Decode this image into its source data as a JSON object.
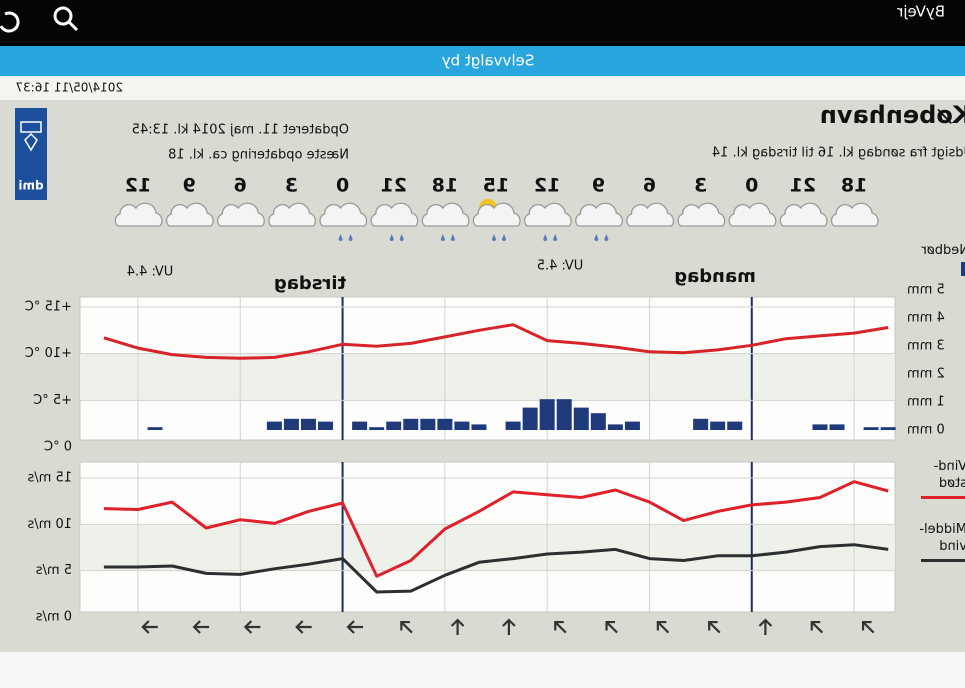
{
  "status_bar": {
    "app": "ByVejr"
  },
  "nav_bar": {
    "title": "Selvvalgt by"
  },
  "timestamp": "2014/05/11 16:37",
  "location": {
    "name": "København",
    "forecast_period": "Udsigt fra søndag kl. 16 til tirsdag kl. 14",
    "updated": "Opdateret 11. maj 2014 kl. 13:45",
    "next_update": "Næste opdatering ca. kl. 18"
  },
  "logo": "dmi",
  "days": [
    "mandag",
    "tirsdag"
  ],
  "uv": [
    "UV: 4.5",
    "UV: 4.4"
  ],
  "chart_data": [
    {
      "type": "line",
      "x": [
        -2,
        0,
        2,
        4,
        6,
        8,
        10,
        12,
        14,
        16,
        18,
        20,
        22,
        24,
        26,
        28,
        30,
        32,
        34,
        36,
        38,
        40,
        42,
        44
      ],
      "xlim": [
        -2.4,
        45.4
      ],
      "xticks": [
        {
          "value": 0,
          "label": "18"
        },
        {
          "value": 3,
          "label": "21"
        },
        {
          "value": 6,
          "label": "0"
        },
        {
          "value": 9,
          "label": "3"
        },
        {
          "value": 12,
          "label": "6"
        },
        {
          "value": 15,
          "label": "9"
        },
        {
          "value": 18,
          "label": "12"
        },
        {
          "value": 21,
          "label": "15"
        },
        {
          "value": 24,
          "label": "18"
        },
        {
          "value": 27,
          "label": "21"
        },
        {
          "value": 30,
          "label": "0"
        },
        {
          "value": 33,
          "label": "3"
        },
        {
          "value": 36,
          "label": "6"
        },
        {
          "value": 39,
          "label": "9"
        },
        {
          "value": 42,
          "label": "12"
        }
      ],
      "ylim": [
        0,
        15
      ],
      "yticks": [
        {
          "value": 15,
          "label": "+15 °C"
        },
        {
          "value": 10,
          "label": "+10 °C"
        },
        {
          "value": 5,
          "label": "+5 °C"
        },
        {
          "value": 0,
          "label": "0 °C"
        }
      ],
      "y2lim": [
        0,
        5
      ],
      "y2ticks": [
        {
          "value": 5,
          "label": "5 mm"
        },
        {
          "value": 4,
          "label": "4 mm"
        },
        {
          "value": 3,
          "label": "3 mm"
        },
        {
          "value": 2,
          "label": "2 mm"
        },
        {
          "value": 1,
          "label": "1 mm"
        },
        {
          "value": 0,
          "label": "0 mm"
        }
      ],
      "series": [
        {
          "color": "#d7232a",
          "values": [
            12.8,
            12.2,
            11.9,
            11.6,
            10.9,
            10.4,
            10.1,
            10.2,
            10.7,
            11.1,
            11.4,
            13.1,
            12.5,
            11.8,
            11.1,
            10.8,
            11.0,
            10.2,
            9.6,
            9.5,
            9.6,
            9.9,
            10.6,
            11.7
          ]
        },
        {
          "name": "Nedbør",
          "type": "bar",
          "axis": "y2",
          "color": "#1f3a7a",
          "x": [
            -2,
            -1,
            1,
            2,
            7,
            8,
            9,
            13,
            14,
            15,
            16,
            17,
            18,
            19,
            20,
            22,
            23,
            24,
            25,
            26,
            27,
            28,
            29,
            31,
            32,
            33,
            34,
            41
          ],
          "values": [
            0.1,
            0.1,
            0.2,
            0.2,
            0.3,
            0.3,
            0.4,
            0.3,
            0.2,
            0.6,
            0.8,
            1.1,
            1.1,
            0.8,
            0.3,
            0.2,
            0.3,
            0.4,
            0.4,
            0.4,
            0.3,
            0.1,
            0.3,
            0.3,
            0.4,
            0.4,
            0.3,
            0.1
          ]
        }
      ]
    },
    {
      "type": "line",
      "x": [
        -2,
        0,
        2,
        4,
        6,
        8,
        10,
        12,
        14,
        16,
        18,
        20,
        22,
        24,
        26,
        28,
        30,
        32,
        34,
        36,
        38,
        40,
        42,
        44
      ],
      "xlim": [
        -2.4,
        45.4
      ],
      "ylim": [
        0,
        15
      ],
      "yticks": [
        {
          "value": 15,
          "label": "15 m/s"
        },
        {
          "value": 10,
          "label": "10 m/s"
        },
        {
          "value": 5,
          "label": "5 m/s"
        },
        {
          "value": 0,
          "label": "0 m/s"
        }
      ],
      "series": [
        {
          "name": "Vind-stød",
          "color": "#e0202a",
          "values": [
            13.6,
            14.6,
            12.9,
            12.4,
            12.1,
            11.4,
            10.4,
            12.4,
            13.7,
            12.9,
            13.2,
            13.5,
            11.4,
            9.5,
            6.1,
            4.4,
            12.3,
            11.4,
            10.1,
            10.5,
            9.6,
            12.4,
            11.6,
            11.7
          ]
        },
        {
          "name": "Middel-vind",
          "color": "#2b2f2f",
          "values": [
            7.3,
            7.8,
            7.6,
            7.0,
            6.6,
            6.6,
            6.1,
            6.3,
            7.3,
            7.0,
            6.8,
            6.3,
            5.9,
            4.5,
            2.8,
            2.7,
            6.3,
            5.7,
            5.2,
            4.6,
            4.7,
            5.5,
            5.4,
            5.4
          ]
        }
      ]
    }
  ]
}
